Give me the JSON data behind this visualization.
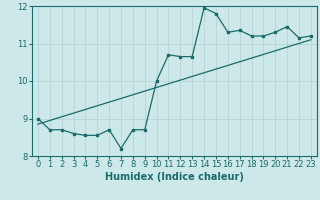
{
  "title": "",
  "xlabel": "Humidex (Indice chaleur)",
  "ylabel": "",
  "bg_color": "#cde8e8",
  "line_color": "#1a6b6b",
  "grid_color": "#b8d4d4",
  "xlim": [
    -0.5,
    23.5
  ],
  "ylim": [
    8,
    12
  ],
  "yticks": [
    8,
    9,
    10,
    11,
    12
  ],
  "xticks": [
    0,
    1,
    2,
    3,
    4,
    5,
    6,
    7,
    8,
    9,
    10,
    11,
    12,
    13,
    14,
    15,
    16,
    17,
    18,
    19,
    20,
    21,
    22,
    23
  ],
  "data_x": [
    0,
    1,
    2,
    3,
    4,
    5,
    6,
    7,
    8,
    9,
    10,
    11,
    12,
    13,
    14,
    15,
    16,
    17,
    18,
    19,
    20,
    21,
    22,
    23
  ],
  "data_y": [
    9.0,
    8.7,
    8.7,
    8.6,
    8.55,
    8.55,
    8.7,
    8.2,
    8.7,
    8.7,
    10.0,
    10.7,
    10.65,
    10.65,
    11.95,
    11.8,
    11.3,
    11.35,
    11.2,
    11.2,
    11.3,
    11.45,
    11.15,
    11.2
  ],
  "trend_x": [
    0,
    23
  ],
  "trend_y": [
    8.85,
    11.1
  ],
  "xlabel_fontsize": 7,
  "tick_fontsize": 6,
  "marker_size": 2.0,
  "linewidth": 0.9
}
